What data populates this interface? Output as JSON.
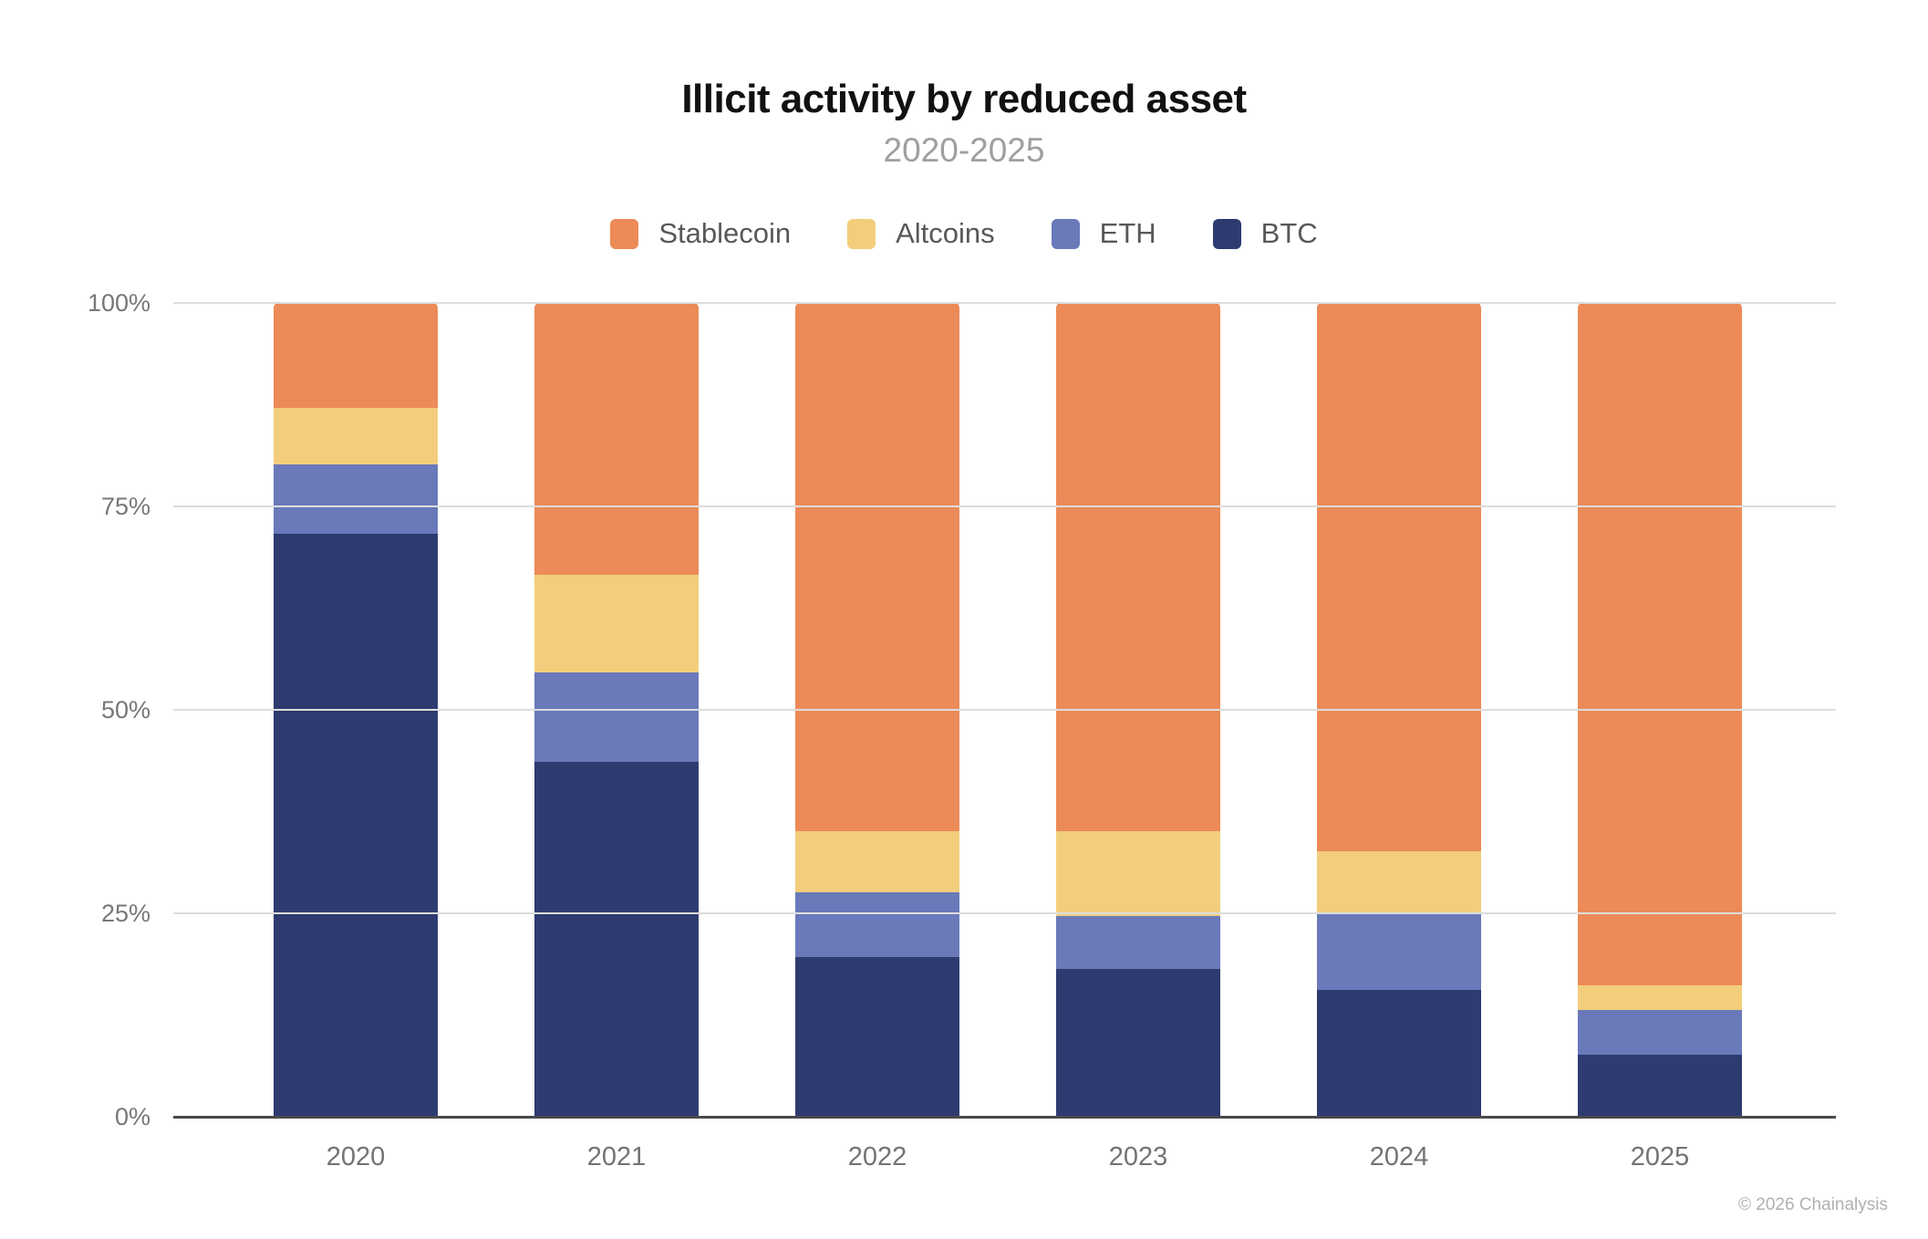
{
  "header": {
    "title": "Illicit activity by reduced asset",
    "subtitle": "2020-2025"
  },
  "legend": [
    {
      "label": "Stablecoin",
      "color": "#EC8A58",
      "icon": "stablecoin-swatch"
    },
    {
      "label": "Altcoins",
      "color": "#F2CE7C",
      "icon": "altcoins-swatch"
    },
    {
      "label": "ETH",
      "color": "#6979BA",
      "icon": "eth-swatch"
    },
    {
      "label": "BTC",
      "color": "#2E3B70",
      "icon": "btc-swatch"
    }
  ],
  "footer": {
    "copyright": "© 2026 Chainalysis"
  },
  "chart_data": {
    "type": "bar",
    "variant": "stacked-100-percent",
    "title": "Illicit activity by reduced asset",
    "subtitle": "2020-2025",
    "categories": [
      "2020",
      "2021",
      "2022",
      "2023",
      "2024",
      "2025"
    ],
    "stack_order_bottom_to_top": [
      "BTC",
      "ETH",
      "Altcoins",
      "Stablecoin"
    ],
    "series": [
      {
        "name": "BTC",
        "color": "#2E3B70",
        "values": [
          71.5,
          43.5,
          19.5,
          18.0,
          15.5,
          7.5
        ]
      },
      {
        "name": "ETH",
        "color": "#6979BA",
        "values": [
          8.5,
          11.0,
          8.0,
          6.5,
          9.5,
          5.5
        ]
      },
      {
        "name": "Altcoins",
        "color": "#F2CE7C",
        "values": [
          7.0,
          12.0,
          7.5,
          10.5,
          7.5,
          3.0
        ]
      },
      {
        "name": "Stablecoin",
        "color": "#EC8A58",
        "values": [
          13.0,
          33.5,
          65.0,
          65.0,
          67.5,
          84.0
        ]
      }
    ],
    "xlabel": "",
    "ylabel": "",
    "ylim": [
      0,
      100
    ],
    "y_ticks": [
      "0%",
      "25%",
      "50%",
      "75%",
      "100%"
    ],
    "grid": true,
    "gridline_color": "#DDDDDD",
    "axis_line_color": "#4A4A4C",
    "legend_position": "top"
  }
}
